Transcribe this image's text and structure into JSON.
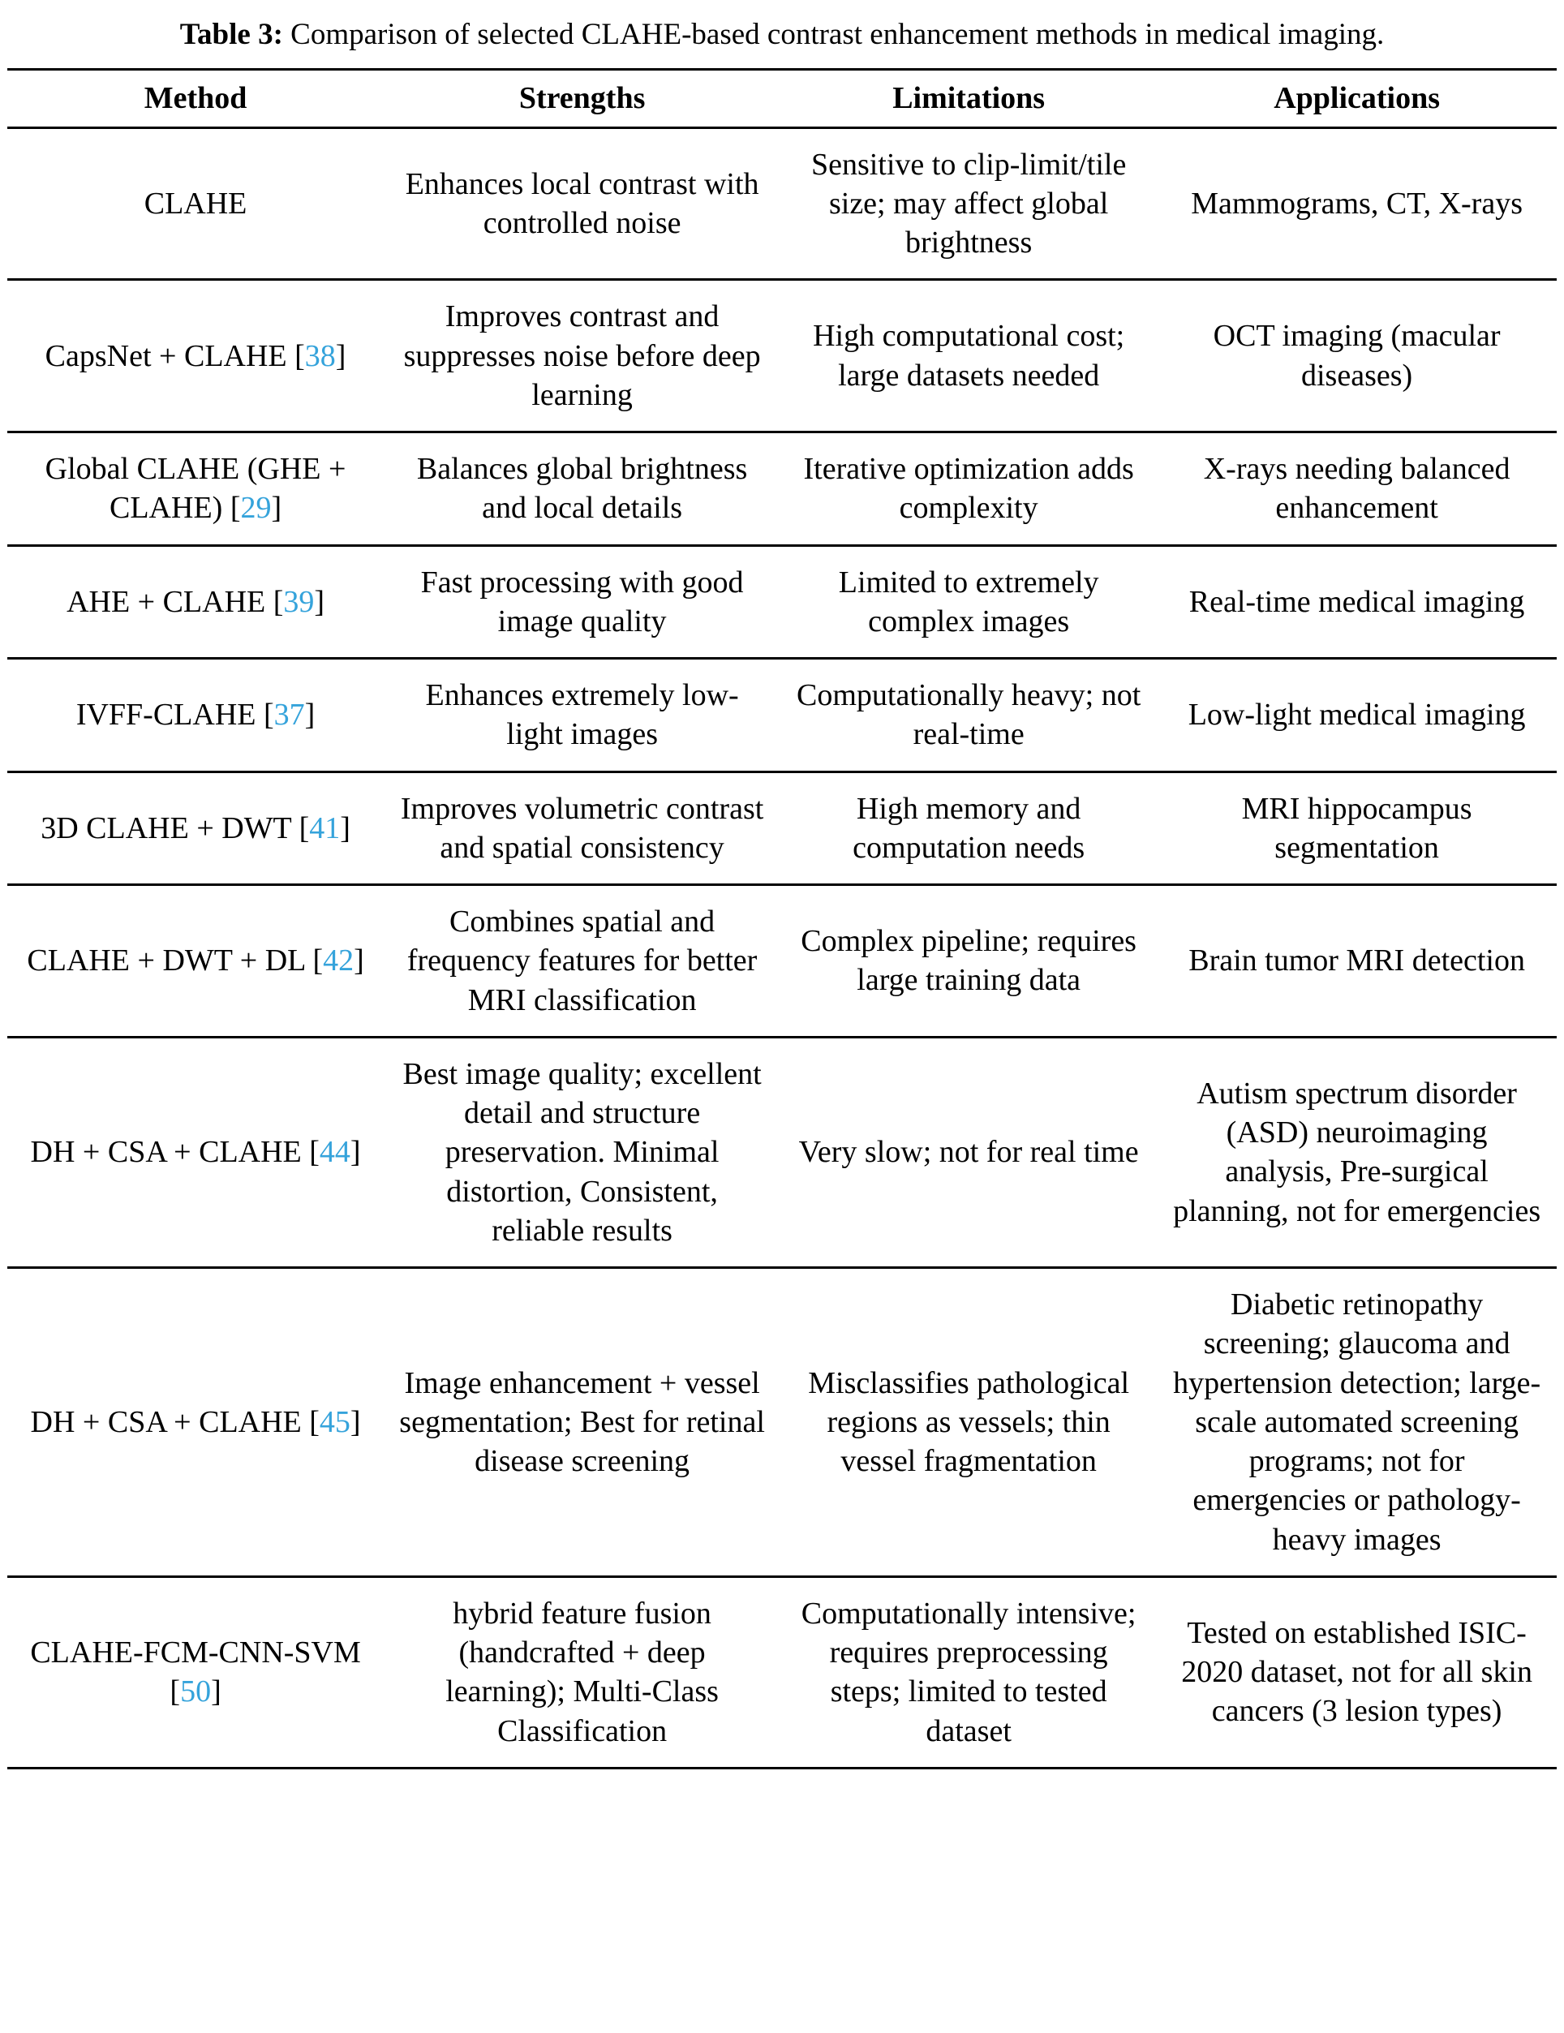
{
  "caption": {
    "label": "Table 3:",
    "text": "Comparison of selected CLAHE-based contrast enhancement methods in medical imaging."
  },
  "symbols": {
    "bracket_open": "[",
    "bracket_close": "]"
  },
  "colors": {
    "citation_link": "#35A3DB",
    "rule": "#000000",
    "text": "#000000",
    "background": "#FFFFFF"
  },
  "table": {
    "headers": [
      "Method",
      "Strengths",
      "Limitations",
      "Applications"
    ],
    "rows": [
      {
        "method": "CLAHE",
        "ref": "",
        "strengths": "Enhances local contrast with controlled noise",
        "limitations": "Sensitive to clip-limit/tile size; may affect global brightness",
        "applications": "Mammograms, CT, X-rays"
      },
      {
        "method": "CapsNet + CLAHE",
        "ref": "38",
        "strengths": "Improves contrast and suppresses noise before deep learning",
        "limitations": "High computational cost; large datasets needed",
        "applications": "OCT imaging (macular diseases)"
      },
      {
        "method": "Global CLAHE (GHE + CLAHE)",
        "ref": "29",
        "strengths": "Balances global brightness and local details",
        "limitations": "Iterative optimization adds complexity",
        "applications": "X-rays needing balanced enhancement"
      },
      {
        "method": "AHE + CLAHE",
        "ref": "39",
        "strengths": "Fast processing with good image quality",
        "limitations": "Limited to extremely complex images",
        "applications": "Real-time medical imaging"
      },
      {
        "method": "IVFF-CLAHE",
        "ref": "37",
        "strengths": "Enhances extremely low-light images",
        "limitations": "Computationally heavy; not real-time",
        "applications": "Low-light medical imaging"
      },
      {
        "method": "3D CLAHE + DWT",
        "ref": "41",
        "strengths": "Improves volumetric contrast and spatial consistency",
        "limitations": "High memory and computation needs",
        "applications": "MRI hippocampus segmentation"
      },
      {
        "method": "CLAHE + DWT + DL",
        "ref": "42",
        "strengths": "Combines spatial and frequency features for better MRI classification",
        "limitations": "Complex pipeline; requires large training data",
        "applications": "Brain tumor MRI detection"
      },
      {
        "method": "DH + CSA + CLAHE",
        "ref": "44",
        "strengths": "Best image quality; excellent detail and structure preservation. Minimal distortion, Consistent, reliable results",
        "limitations": "Very slow; not for real time",
        "applications": "Autism spectrum disorder (ASD) neuroimaging analysis, Pre-surgical planning, not for emergencies"
      },
      {
        "method": "DH + CSA + CLAHE",
        "ref": "45",
        "strengths": "Image enhancement + vessel segmentation; Best for retinal disease screening",
        "limitations": "Misclassifies pathological regions as vessels; thin vessel fragmentation",
        "applications": "Diabetic retinopathy screening; glaucoma and hypertension detection; large-scale automated screening programs; not for emergencies or pathology-heavy images"
      },
      {
        "method": "CLAHE-FCM-CNN-SVM",
        "ref": "50",
        "strengths": "hybrid feature fusion (handcrafted + deep learning); Multi-Class Classification",
        "limitations": "Computationally intensive; requires preprocessing steps; limited to tested dataset",
        "applications": "Tested on established ISIC-2020 dataset, not for all skin cancers (3 lesion types)"
      }
    ]
  }
}
